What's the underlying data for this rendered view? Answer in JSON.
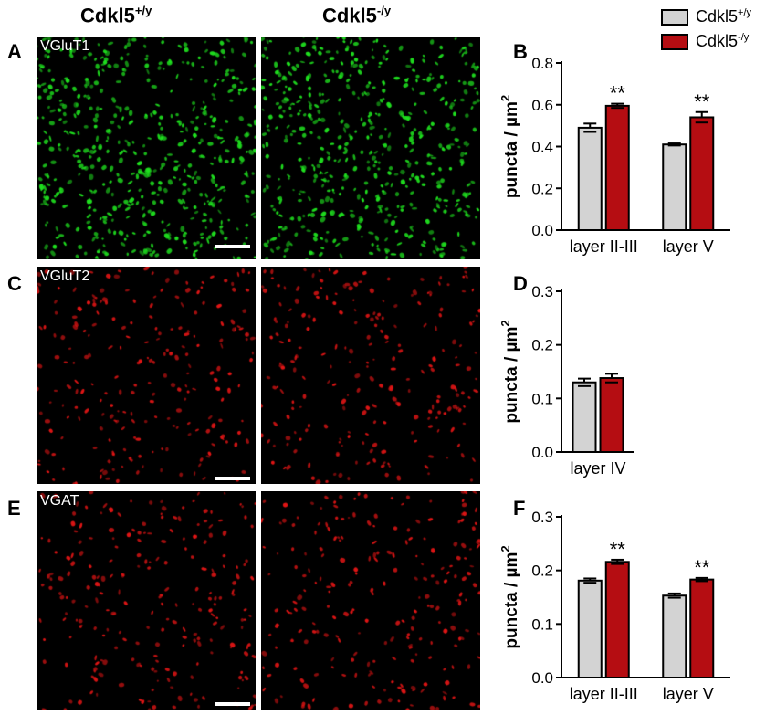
{
  "column_headers": [
    {
      "base": "Cdkl5",
      "sup": "+/y"
    },
    {
      "base": "Cdkl5",
      "sup": "-/y"
    }
  ],
  "legend": [
    {
      "base": "Cdkl5",
      "sup": "+/y",
      "color": "#d3d3d3"
    },
    {
      "base": "Cdkl5",
      "sup": "-/y",
      "color": "#b50d12"
    }
  ],
  "micrographs": [
    {
      "panel": "A",
      "label": "VGluT1",
      "color": "#1fe01f",
      "scale_bar": true
    },
    {
      "panel": "C",
      "label": "VGluT2",
      "color": "#e01515",
      "scale_bar": true
    },
    {
      "panel": "E",
      "label": "VGAT",
      "color": "#e01515",
      "scale_bar": true
    }
  ],
  "chart_data": [
    {
      "panel": "B",
      "type": "bar",
      "ylabel": "puncta / µm",
      "ylabel_sup": "2",
      "ylim": [
        0,
        0.8
      ],
      "yticks": [
        "0.0",
        "0.2",
        "0.4",
        "0.6",
        "0.8"
      ],
      "categories": [
        "layer II-III",
        "layer V"
      ],
      "series": [
        {
          "name": "Cdkl5 +/y",
          "values": [
            0.49,
            0.41
          ],
          "errors": [
            0.02,
            0.005
          ]
        },
        {
          "name": "Cdkl5 -/y",
          "values": [
            0.595,
            0.54
          ],
          "errors": [
            0.01,
            0.025
          ]
        }
      ],
      "annotations": [
        {
          "category": 0,
          "series": 1,
          "text": "**"
        },
        {
          "category": 1,
          "series": 1,
          "text": "**"
        }
      ]
    },
    {
      "panel": "D",
      "type": "bar",
      "ylabel": "puncta / µm",
      "ylabel_sup": "2",
      "ylim": [
        0,
        0.3
      ],
      "yticks": [
        "0.0",
        "0.1",
        "0.2",
        "0.3"
      ],
      "categories": [
        "layer IV"
      ],
      "series": [
        {
          "name": "Cdkl5 +/y",
          "values": [
            0.13
          ],
          "errors": [
            0.007
          ]
        },
        {
          "name": "Cdkl5 -/y",
          "values": [
            0.138
          ],
          "errors": [
            0.008
          ]
        }
      ],
      "annotations": []
    },
    {
      "panel": "F",
      "type": "bar",
      "ylabel": "puncta / µm",
      "ylabel_sup": "2",
      "ylim": [
        0,
        0.3
      ],
      "yticks": [
        "0.0",
        "0.1",
        "0.2",
        "0.3"
      ],
      "categories": [
        "layer II-III",
        "layer V"
      ],
      "series": [
        {
          "name": "Cdkl5 +/y",
          "values": [
            0.181,
            0.153
          ],
          "errors": [
            0.004,
            0.004
          ]
        },
        {
          "name": "Cdkl5 -/y",
          "values": [
            0.216,
            0.183
          ],
          "errors": [
            0.004,
            0.003
          ]
        }
      ],
      "annotations": [
        {
          "category": 0,
          "series": 1,
          "text": "**"
        },
        {
          "category": 1,
          "series": 1,
          "text": "**"
        }
      ]
    }
  ]
}
